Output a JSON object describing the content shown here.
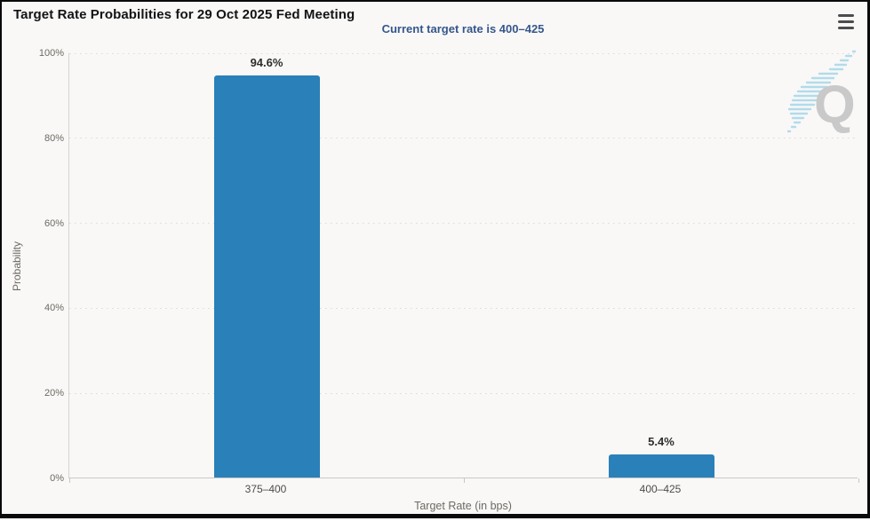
{
  "header": {
    "title": "Target Rate Probabilities for 29 Oct 2025 Fed Meeting",
    "subtitle": "Current target rate is 400–425"
  },
  "watermark": {
    "letter": "Q"
  },
  "colors": {
    "bar": "#2a80b9",
    "subtitle_text": "#35568b",
    "title_text": "#131313",
    "axis_text": "#6e6a64",
    "watermark_letter": "#c9c9c9",
    "watermark_streak": "#a6d7e9"
  },
  "chart_data": {
    "type": "bar",
    "title": "Target Rate Probabilities for 29 Oct 2025 Fed Meeting",
    "subtitle": "Current target rate is 400–425",
    "categories": [
      "375–400",
      "400–425"
    ],
    "values": [
      94.6,
      5.4
    ],
    "value_labels": [
      "94.6%",
      "5.4%"
    ],
    "xlabel": "Target Rate (in bps)",
    "ylabel": "Probability",
    "ylim": [
      0,
      100
    ],
    "yticks": [
      0,
      20,
      40,
      60,
      80,
      100
    ],
    "ytick_labels": [
      "0%",
      "20%",
      "40%",
      "60%",
      "80%",
      "100%"
    ],
    "grid": "dotted-horizontal",
    "legend": "none"
  }
}
